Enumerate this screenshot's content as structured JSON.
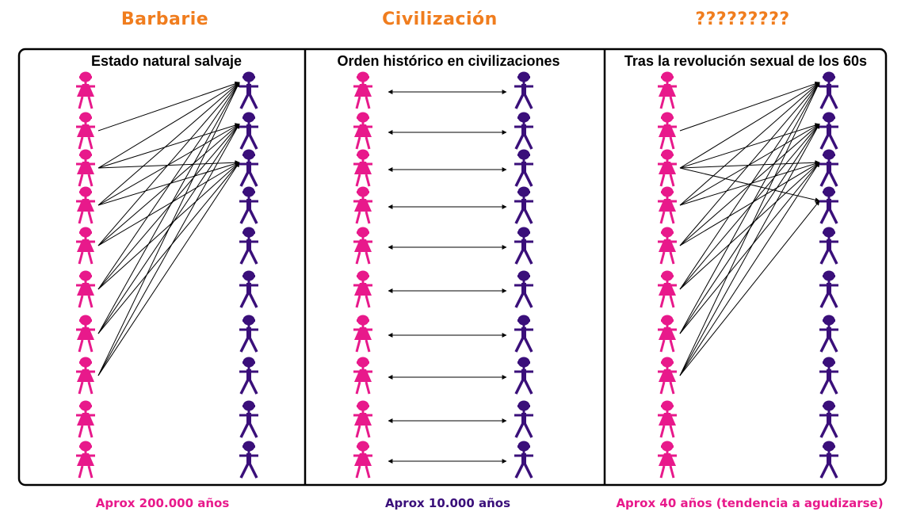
{
  "colors": {
    "heading": "#f07d1e",
    "woman": "#e8198b",
    "man": "#3a0f7a",
    "arrow": "#000000",
    "note_pink": "#e8198b",
    "note_purple": "#3a0f7a"
  },
  "icons": {
    "woman": "woman-figure-icon",
    "man": "man-figure-icon"
  },
  "figures_per_column": 10,
  "panels": [
    {
      "heading": "Barbarie",
      "title": "Estado natural salvaje",
      "note": "Aprox 200.000 años",
      "note_color": "#e8198b",
      "links": [
        [
          1,
          0
        ],
        [
          2,
          0
        ],
        [
          2,
          1
        ],
        [
          2,
          2
        ],
        [
          3,
          0
        ],
        [
          3,
          1
        ],
        [
          3,
          2
        ],
        [
          4,
          0
        ],
        [
          4,
          1
        ],
        [
          4,
          2
        ],
        [
          5,
          0
        ],
        [
          5,
          1
        ],
        [
          5,
          2
        ],
        [
          6,
          0
        ],
        [
          6,
          1
        ],
        [
          6,
          2
        ],
        [
          7,
          0
        ],
        [
          7,
          1
        ],
        [
          7,
          2
        ]
      ]
    },
    {
      "heading": "Civilización",
      "title": "Orden histórico en civilizaciones",
      "note": "Aprox 10.000 años",
      "note_color": "#3a0f7a",
      "links": [
        [
          0,
          0
        ],
        [
          1,
          1
        ],
        [
          2,
          2
        ],
        [
          3,
          3
        ],
        [
          4,
          4
        ],
        [
          5,
          5
        ],
        [
          6,
          6
        ],
        [
          7,
          7
        ],
        [
          8,
          8
        ],
        [
          9,
          9
        ]
      ]
    },
    {
      "heading": "?????????",
      "title": "Tras la revolución sexual de los 60s",
      "note": "Aprox 40 años (tendencia a agudizarse)",
      "note_color": "#e8198b",
      "links": [
        [
          1,
          0
        ],
        [
          2,
          0
        ],
        [
          2,
          1
        ],
        [
          2,
          2
        ],
        [
          2,
          3
        ],
        [
          3,
          0
        ],
        [
          3,
          1
        ],
        [
          3,
          2
        ],
        [
          4,
          0
        ],
        [
          4,
          1
        ],
        [
          4,
          2
        ],
        [
          5,
          0
        ],
        [
          5,
          1
        ],
        [
          5,
          2
        ],
        [
          6,
          0
        ],
        [
          6,
          1
        ],
        [
          6,
          2
        ],
        [
          7,
          0
        ],
        [
          7,
          1
        ],
        [
          7,
          2
        ],
        [
          7,
          3
        ]
      ]
    }
  ]
}
